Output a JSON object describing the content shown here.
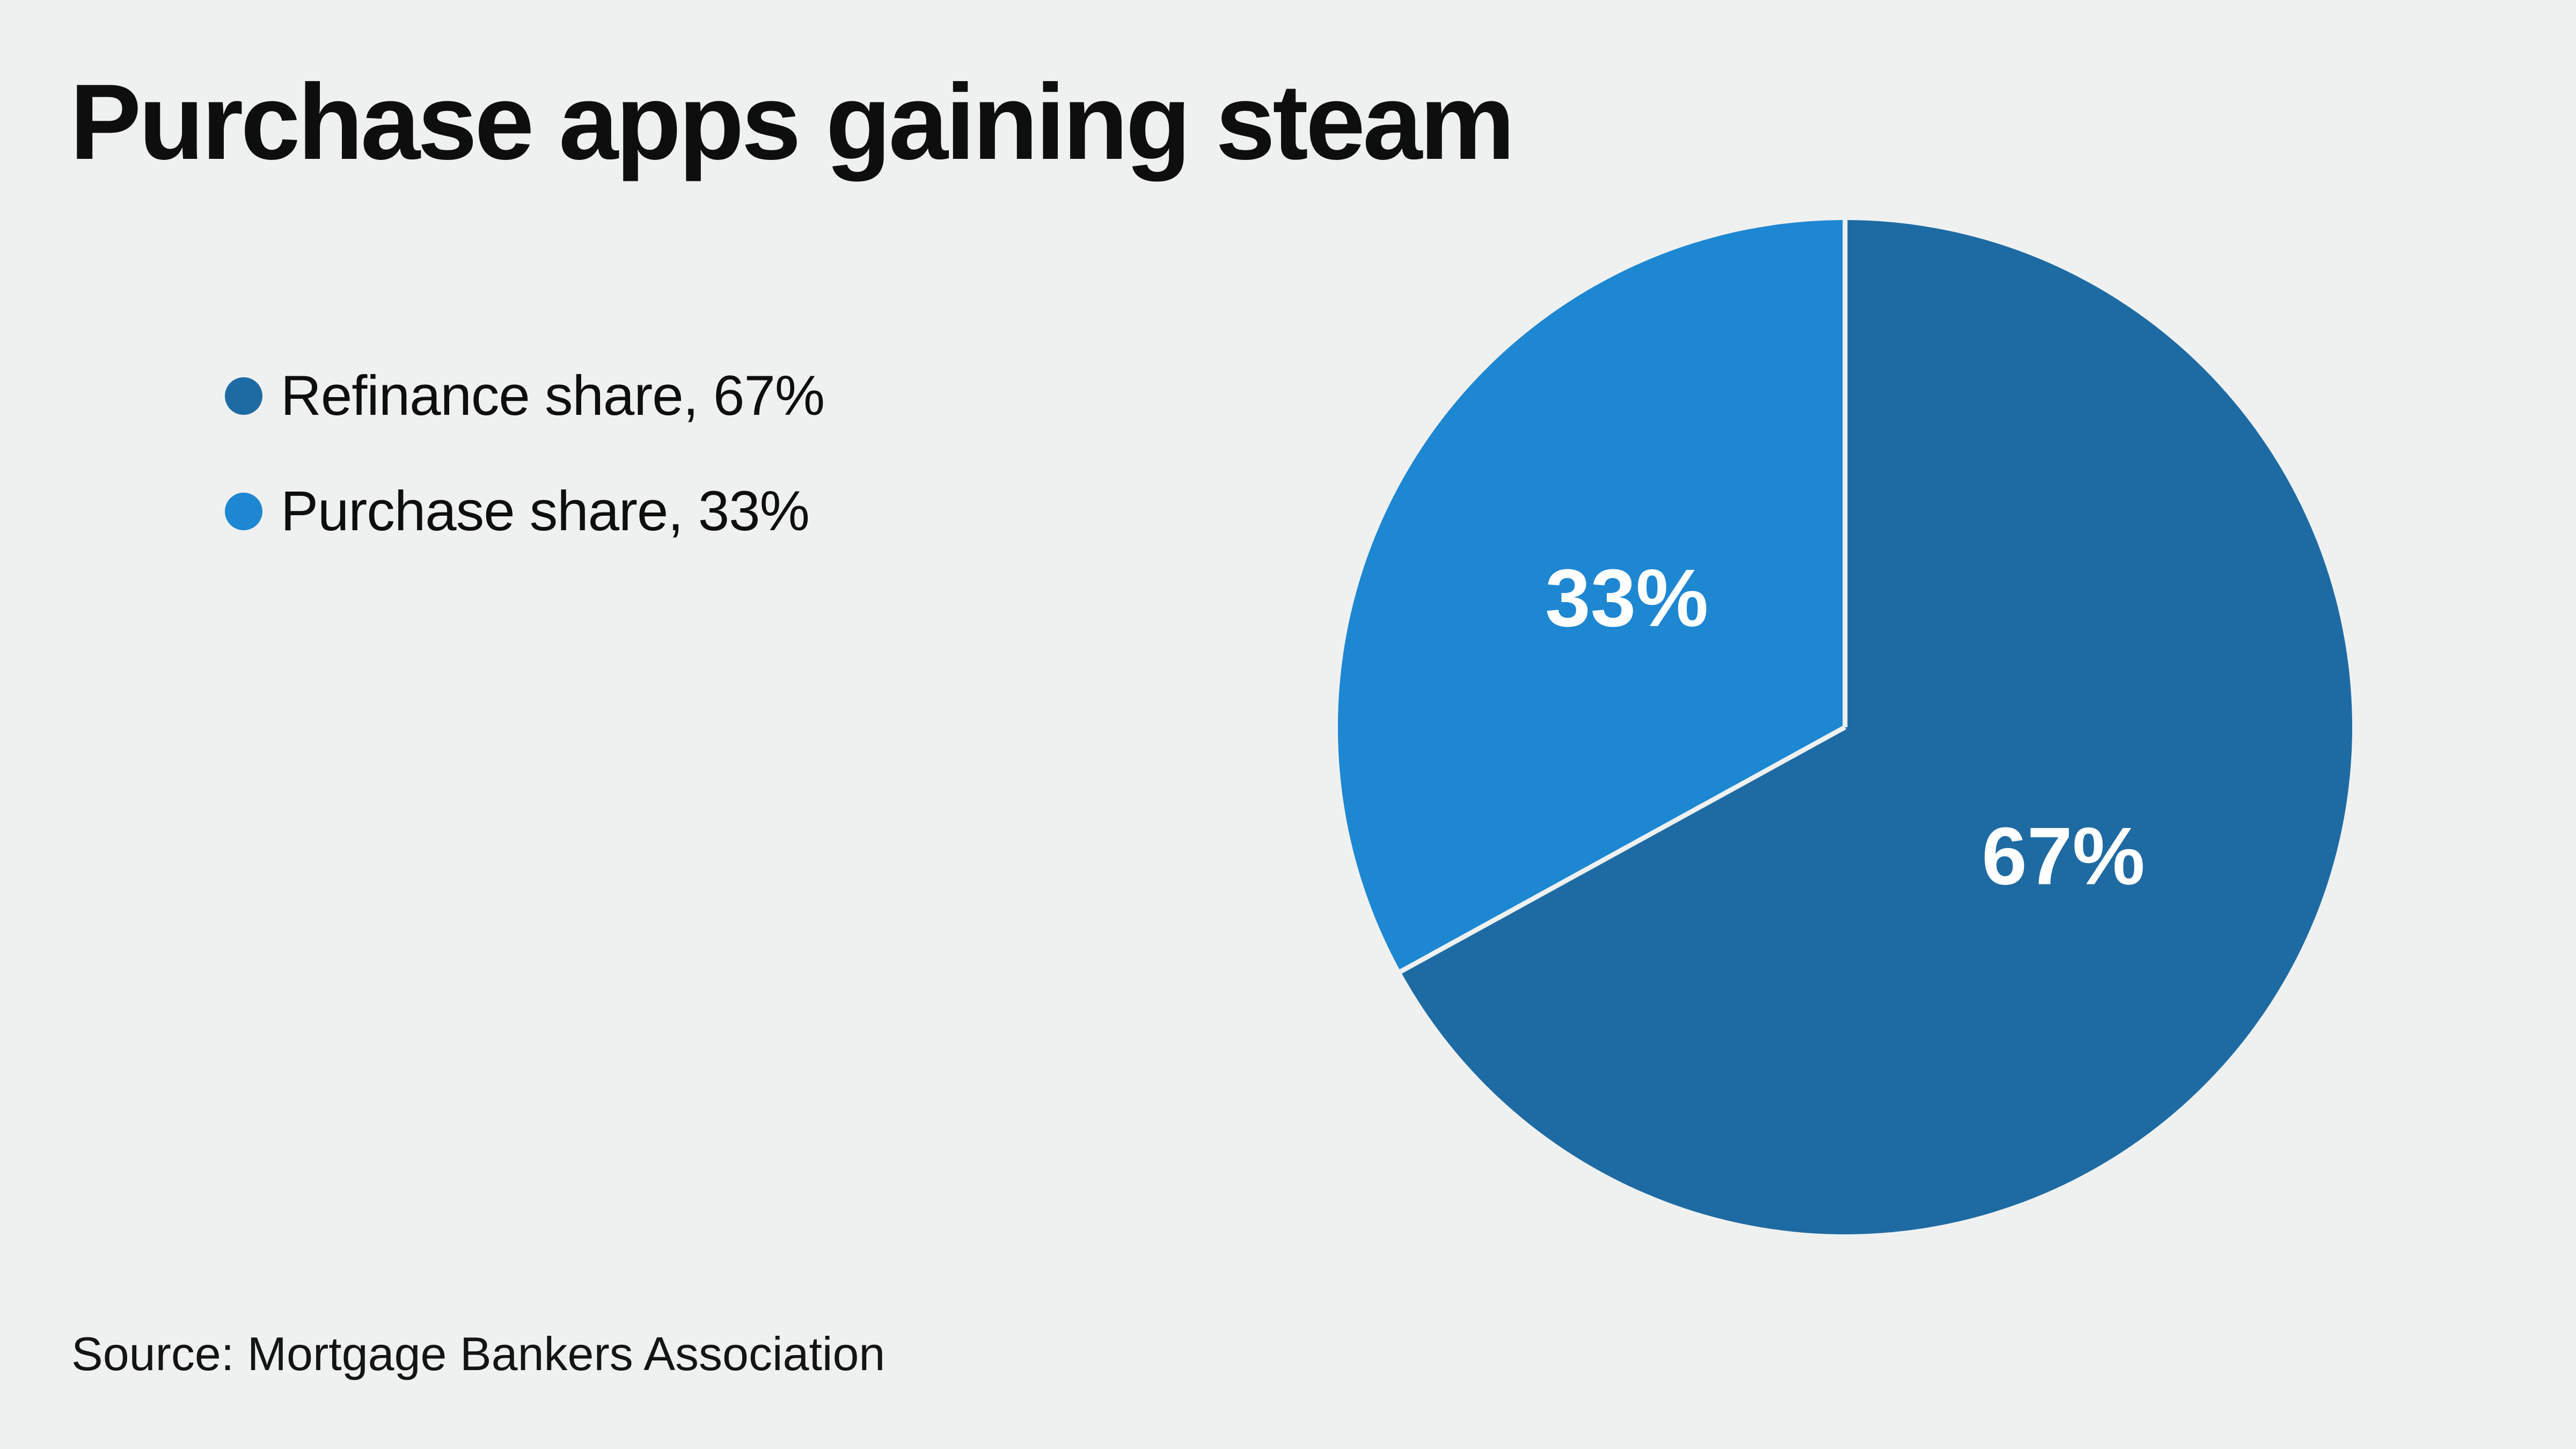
{
  "title": "Purchase apps gaining steam",
  "source_line": "Source: Mortgage Bankers Association",
  "colors": {
    "background": "#eff1f1",
    "refinance_blue": "#1e6ba3",
    "purchase_blue": "#1d87d2",
    "slice_label": "#ffffff",
    "divider": "#eff1f1",
    "text": "#0e0e0e"
  },
  "legend": {
    "items": [
      {
        "label": "Refinance share, 67%"
      },
      {
        "label": "Purchase share, 33%"
      }
    ]
  },
  "chart_data": {
    "type": "pie",
    "title": "Purchase apps gaining steam",
    "series": [
      {
        "name": "Refinance share",
        "value": 67,
        "label": "67%",
        "color": "#1e6ba3"
      },
      {
        "name": "Purchase share",
        "value": 33,
        "label": "33%",
        "color": "#1d87d2"
      }
    ],
    "start_angle_deg": 0,
    "direction": "clockwise",
    "slice_label_color": "#ffffff",
    "divider_color": "#eff1f1",
    "legend_position": "upper-left",
    "source": "Source: Mortgage Bankers Association"
  }
}
